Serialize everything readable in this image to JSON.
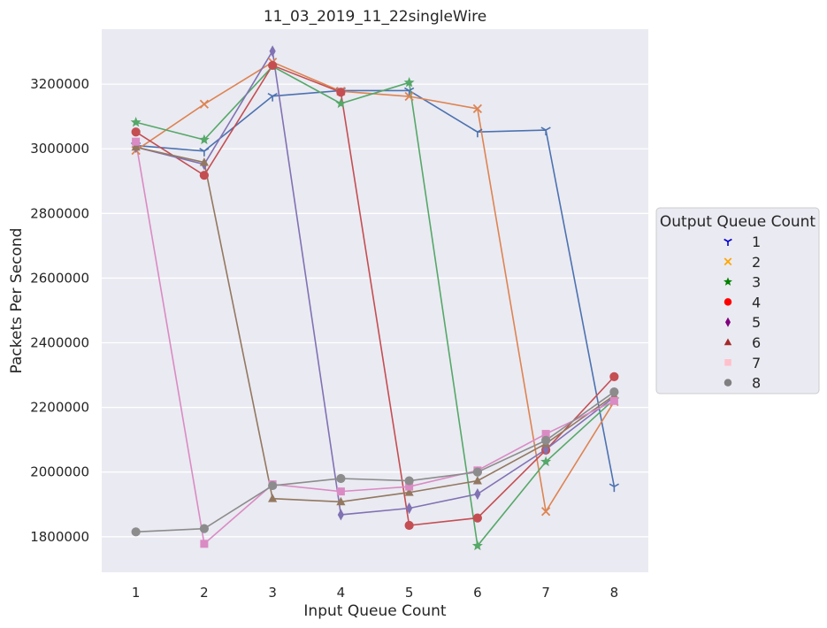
{
  "chart_data": {
    "type": "line",
    "title": "11_03_2019_11_22singleWire",
    "xlabel": "Input Queue Count",
    "ylabel": "Packets Per Second",
    "x": [
      1,
      2,
      3,
      4,
      5,
      6,
      7,
      8
    ],
    "xlim": [
      0.5,
      8.5
    ],
    "ylim": [
      1690000,
      3370000
    ],
    "yticks": [
      1800000,
      2000000,
      2200000,
      2400000,
      2600000,
      2800000,
      3000000,
      3200000
    ],
    "grid": true,
    "legend": {
      "title": "Output Queue Count",
      "placement": "right"
    },
    "series": [
      {
        "name": "1",
        "marker": "tri",
        "line_color": "#4c72b0",
        "legend_color": "#0000cd",
        "values": [
          3010000,
          2993000,
          3163000,
          3180000,
          3180000,
          3052000,
          3058000,
          1955000
        ]
      },
      {
        "name": "2",
        "marker": "x",
        "line_color": "#dd8452",
        "legend_color": "#ffa500",
        "values": [
          2995000,
          3138000,
          3268000,
          3178000,
          3162000,
          3124000,
          1878000,
          2218000
        ]
      },
      {
        "name": "3",
        "marker": "star",
        "line_color": "#55a868",
        "legend_color": "#008000",
        "values": [
          3082000,
          3028000,
          3255000,
          3140000,
          3205000,
          1772000,
          2032000,
          2225000
        ]
      },
      {
        "name": "4",
        "marker": "circle",
        "line_color": "#c44e52",
        "legend_color": "#ff0000",
        "values": [
          3052000,
          2918000,
          3258000,
          3175000,
          1835000,
          1858000,
          2068000,
          2295000
        ]
      },
      {
        "name": "5",
        "marker": "diamond",
        "line_color": "#8172b3",
        "legend_color": "#800080",
        "values": [
          3005000,
          2952000,
          3302000,
          1868000,
          1888000,
          1932000,
          2070000,
          2232000
        ]
      },
      {
        "name": "6",
        "marker": "triangle",
        "line_color": "#937860",
        "legend_color": "#a52a2a",
        "values": [
          3005000,
          2958000,
          1918000,
          1908000,
          1937000,
          1973000,
          2088000,
          2237000
        ]
      },
      {
        "name": "7",
        "marker": "square",
        "line_color": "#da8bc3",
        "legend_color": "#ffc0cb",
        "values": [
          3022000,
          1778000,
          1962000,
          1940000,
          1955000,
          2005000,
          2118000,
          2220000
        ]
      },
      {
        "name": "8",
        "marker": "circle",
        "line_color": "#8c8c8c",
        "legend_color": "#808080",
        "values": [
          1815000,
          1825000,
          1958000,
          1980000,
          1973000,
          2000000,
          2098000,
          2248000
        ]
      }
    ]
  }
}
